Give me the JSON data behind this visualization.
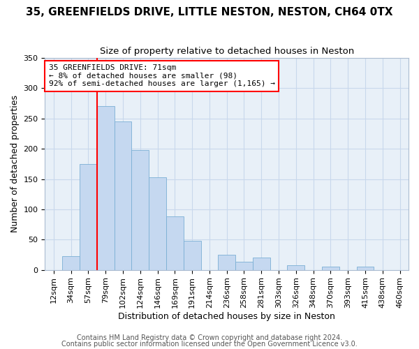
{
  "title1": "35, GREENFIELDS DRIVE, LITTLE NESTON, NESTON, CH64 0TX",
  "title2": "Size of property relative to detached houses in Neston",
  "xlabel": "Distribution of detached houses by size in Neston",
  "ylabel": "Number of detached properties",
  "footer1": "Contains HM Land Registry data © Crown copyright and database right 2024.",
  "footer2": "Contains public sector information licensed under the Open Government Licence v3.0.",
  "bin_labels": [
    "12sqm",
    "34sqm",
    "57sqm",
    "79sqm",
    "102sqm",
    "124sqm",
    "146sqm",
    "169sqm",
    "191sqm",
    "214sqm",
    "236sqm",
    "258sqm",
    "281sqm",
    "303sqm",
    "326sqm",
    "348sqm",
    "370sqm",
    "393sqm",
    "415sqm",
    "438sqm",
    "460sqm"
  ],
  "bar_heights": [
    0,
    23,
    175,
    270,
    245,
    198,
    153,
    88,
    48,
    0,
    25,
    14,
    21,
    0,
    8,
    0,
    5,
    0,
    5,
    0,
    0
  ],
  "bar_color": "#c5d8f0",
  "bar_edge_color": "#7aafd4",
  "grid_color": "#c8d8ec",
  "vline_color": "red",
  "vline_bin_index": 2,
  "annotation_text": "35 GREENFIELDS DRIVE: 71sqm\n← 8% of detached houses are smaller (98)\n92% of semi-detached houses are larger (1,165) →",
  "annotation_box_color": "white",
  "annotation_box_edge_color": "red",
  "ylim": [
    0,
    350
  ],
  "yticks": [
    0,
    50,
    100,
    150,
    200,
    250,
    300,
    350
  ],
  "background_color": "#ffffff",
  "ax_background_color": "#e8f0f8",
  "title1_fontsize": 11,
  "title2_fontsize": 9.5,
  "xlabel_fontsize": 9,
  "ylabel_fontsize": 9,
  "tick_fontsize": 8,
  "footer_fontsize": 7
}
